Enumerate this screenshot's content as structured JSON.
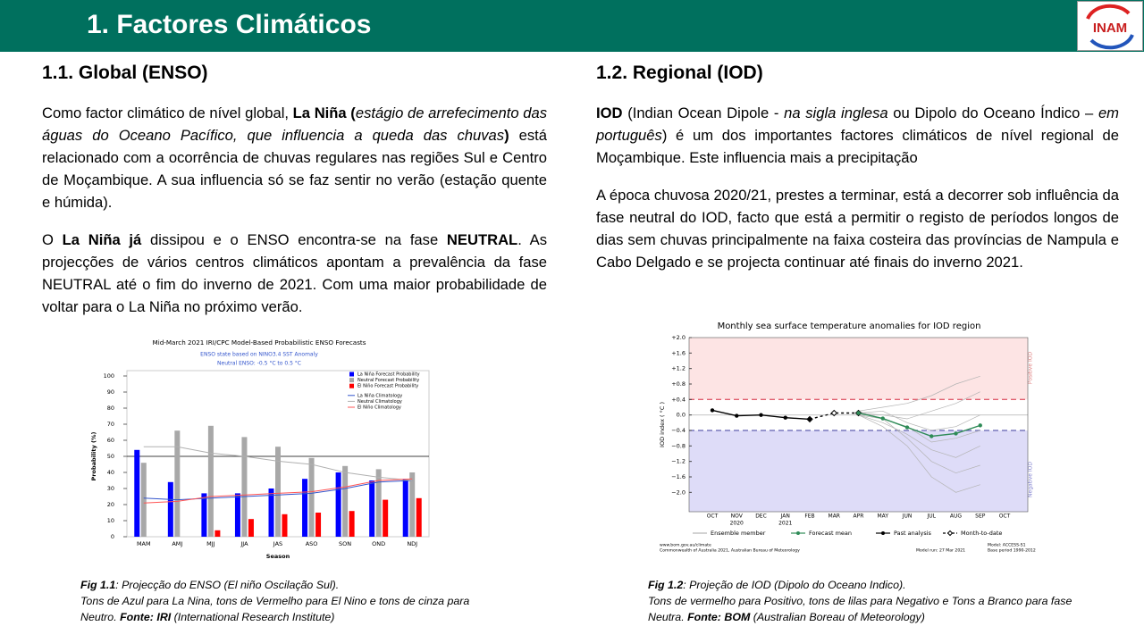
{
  "header": {
    "title": "1. Factores Climáticos",
    "logo": "INAM"
  },
  "sections": [
    {
      "heading": "1.1.  Global (ENSO)",
      "paragraphs": [
        [
          {
            "text": "Como factor climático de nível global, "
          },
          {
            "text": "La Niña (",
            "bold": true
          },
          {
            "text": "estágio de arrefecimento das águas do Oceano Pacífico, que influencia a queda das chuvas",
            "italic": true
          },
          {
            "text": ")",
            "bold": true
          },
          {
            "text": " está relacionado com a ocorrência de chuvas regulares nas regiões Sul e Centro de Moçambique. A sua influencia só se faz sentir no verão (estação quente e húmida)."
          }
        ],
        [
          {
            "text": "O "
          },
          {
            "text": "La Niña já",
            "bold": true
          },
          {
            "text": " dissipou e o ENSO encontra-se  na fase "
          },
          {
            "text": "NEUTRAL",
            "bold": true
          },
          {
            "text": ". As projecções de vários centros climáticos apontam a prevalência da fase NEUTRAL até o fim do inverno de 2021. Com uma maior probabilidade de voltar para o La Niña no próximo verão."
          }
        ]
      ],
      "caption": [
        [
          {
            "text": "Fig 1.1",
            "bold": true,
            "italic": true
          },
          {
            "text": ": Projecção do ENSO (El niño Oscilação Sul).",
            "italic": true
          }
        ],
        [
          {
            "text": "Tons de Azul para La Nina, tons de Vermelho para El Nino e tons de cinza para Neutro. ",
            "italic": true
          },
          {
            "text": "Fonte: IRI",
            "bold": true,
            "italic": true
          },
          {
            "text": " (International Research Institute)",
            "italic": true
          }
        ]
      ]
    },
    {
      "heading": "1.2. Regional (IOD)",
      "paragraphs": [
        [
          {
            "text": "IOD",
            "bold": true
          },
          {
            "text": " (Indian Ocean Dipole - "
          },
          {
            "text": "na sigla inglesa",
            "italic": true
          },
          {
            "text": " ou Dipolo do Oceano Índico – "
          },
          {
            "text": "em português",
            "italic": true
          },
          {
            "text": ") é um dos importantes factores climáticos de nível regional de Moçambique. Este influencia mais a precipitação"
          }
        ],
        [
          {
            "text": "A época chuvosa 2020/21, prestes a terminar, está a decorrer sob influência da fase neutral do IOD, facto que está a permitir o registo de períodos longos de dias sem chuvas principalmente na faixa costeira das províncias de Nampula e Cabo Delgado e se projecta continuar até finais do inverno 2021."
          }
        ]
      ],
      "caption": [
        [
          {
            "text": "Fig 1.2",
            "bold": true,
            "italic": true
          },
          {
            "text": ": Projeção de IOD (Dipolo do Oceano Indico).",
            "italic": true
          }
        ],
        [
          {
            "text": "Tons de vermelho para Positivo, tons de lilas para Negativo e Tons a Branco para fase Neutra. ",
            "italic": true
          },
          {
            "text": "Fonte: BOM",
            "bold": true,
            "italic": true
          },
          {
            "text": " (Australian Boreau of Meteorology)",
            "italic": true
          }
        ]
      ]
    }
  ],
  "chart_data": [
    {
      "type": "bar",
      "title": "Mid-March 2021 IRI/CPC Model-Based Probabilistic ENSO Forecasts",
      "subtitle": [
        "ENSO state based on NINO3.4 SST Anomaly",
        "Neutral ENSO: -0.5 °C to 0.5 °C"
      ],
      "x_label": "Season",
      "y_label": "Probability (%)",
      "categories": [
        "MAM",
        "AMJ",
        "MJJ",
        "JJA",
        "JAS",
        "ASO",
        "SON",
        "OND",
        "NDJ"
      ],
      "ylim": [
        0,
        100
      ],
      "yticks": [
        0,
        10,
        20,
        30,
        40,
        50,
        60,
        70,
        80,
        90,
        100
      ],
      "grid": false,
      "reference_line": 50,
      "legend": "upper right",
      "series": [
        {
          "name": "La Niña Forecast Probability",
          "kind": "bar",
          "color": "#0000ff",
          "values": [
            54,
            34,
            27,
            27,
            30,
            36,
            40,
            35,
            36
          ]
        },
        {
          "name": "Neutral Forecast Probability",
          "kind": "bar",
          "color": "#a8a8a8",
          "values": [
            46,
            66,
            69,
            62,
            56,
            49,
            44,
            42,
            40
          ]
        },
        {
          "name": "El Niño Forecast Probability",
          "kind": "bar",
          "color": "#ff0000",
          "values": [
            0,
            0,
            4,
            11,
            14,
            15,
            16,
            23,
            24
          ]
        },
        {
          "name": "La Niña Climatology",
          "kind": "line",
          "color": "#3355cc",
          "values": [
            24,
            23,
            24,
            25,
            26,
            27,
            30,
            34,
            35
          ]
        },
        {
          "name": "Neutral Climatology",
          "kind": "line",
          "color": "#b0b0b0",
          "values": [
            56,
            56,
            52,
            50,
            47,
            45,
            40,
            37,
            35
          ]
        },
        {
          "name": "El Niño Climatology",
          "kind": "line",
          "color": "#ff5555",
          "values": [
            21,
            22,
            25,
            26,
            27,
            28,
            31,
            35,
            36
          ]
        }
      ]
    },
    {
      "type": "line",
      "title": "Monthly sea surface temperature anomalies for IOD region",
      "y_label": "IOD index ( °C )",
      "categories": [
        "OCT",
        "NOV",
        "DEC",
        "JAN",
        "FEB",
        "MAR",
        "APR",
        "MAY",
        "JUN",
        "JUL",
        "AUG",
        "SEP",
        "OCT"
      ],
      "category_years": [
        null,
        "2020",
        null,
        "2021",
        null,
        null,
        null,
        null,
        null,
        null,
        null,
        null,
        null
      ],
      "ylim": [
        -2.5,
        2.0
      ],
      "yticks": [
        {
          "value": 2.0,
          "label": "+2.0"
        },
        {
          "value": 1.6,
          "label": "+1.6"
        },
        {
          "value": 1.2,
          "label": "+1.2"
        },
        {
          "value": 0.8,
          "label": "+0.8"
        },
        {
          "value": 0.4,
          "label": "+0.4"
        },
        {
          "value": 0,
          "label": "0.0"
        },
        {
          "value": -0.4,
          "label": "−0.4"
        },
        {
          "value": -0.8,
          "label": "−0.8"
        },
        {
          "value": -1.2,
          "label": "−1.2"
        },
        {
          "value": -1.6,
          "label": "−1.6"
        },
        {
          "value": -2.0,
          "label": "−2.0"
        }
      ],
      "positive_threshold": 0.4,
      "negative_threshold": -0.4,
      "positive_label": "Positive IOD",
      "negative_label": "Negative IOD",
      "positive_color": "#fde4e4",
      "negative_color": "#dedcf8",
      "legend": "bottom",
      "series": [
        {
          "name": "Ensemble member",
          "color": "#b4b4b4",
          "members": [
            [
              null,
              null,
              null,
              null,
              null,
              null,
              0.1,
              0.2,
              0.3,
              0.5,
              0.8,
              1.0,
              null
            ],
            [
              null,
              null,
              null,
              null,
              null,
              null,
              0.05,
              0.0,
              -0.1,
              0.1,
              0.3,
              0.6,
              null
            ],
            [
              null,
              null,
              null,
              null,
              null,
              null,
              0.0,
              -0.2,
              -0.5,
              -0.9,
              -1.1,
              -0.8,
              null
            ],
            [
              null,
              null,
              null,
              null,
              null,
              null,
              0.1,
              -0.1,
              -0.6,
              -1.2,
              -1.5,
              -1.3,
              null
            ],
            [
              null,
              null,
              null,
              null,
              null,
              null,
              0.0,
              -0.3,
              -0.8,
              -1.6,
              -2.0,
              -1.8,
              null
            ],
            [
              null,
              null,
              null,
              null,
              null,
              null,
              0.05,
              0.1,
              -0.2,
              -0.4,
              -0.3,
              0.0,
              null
            ],
            [
              null,
              null,
              null,
              null,
              null,
              null,
              0.0,
              -0.1,
              -0.3,
              -0.7,
              -0.6,
              -0.4,
              null
            ]
          ]
        },
        {
          "name": "Forecast mean",
          "color": "#2e8b57",
          "marker": "circle",
          "values": [
            null,
            null,
            null,
            null,
            null,
            null,
            0.05,
            -0.09,
            -0.32,
            -0.55,
            -0.48,
            -0.27,
            null
          ]
        },
        {
          "name": "Past analysis",
          "color": "#000000",
          "marker": "circle",
          "values": [
            0.12,
            -0.02,
            0.0,
            -0.07,
            -0.11,
            null,
            null,
            null,
            null,
            null,
            null,
            null,
            null
          ]
        },
        {
          "name": "Month-to-date",
          "color": "#000000",
          "marker": "diamond",
          "dashed": true,
          "values": [
            null,
            null,
            null,
            null,
            -0.11,
            0.05,
            0.05,
            null,
            null,
            null,
            null,
            null,
            null
          ]
        }
      ],
      "footer": [
        "www.bom.gov.au/climate",
        "Commonwealth of Australia 2021, Australian Bureau of Meteorology",
        "Model run: 27 Mar 2021",
        "Model: ACCESS-S1",
        "Base period 1990-2012"
      ]
    }
  ]
}
